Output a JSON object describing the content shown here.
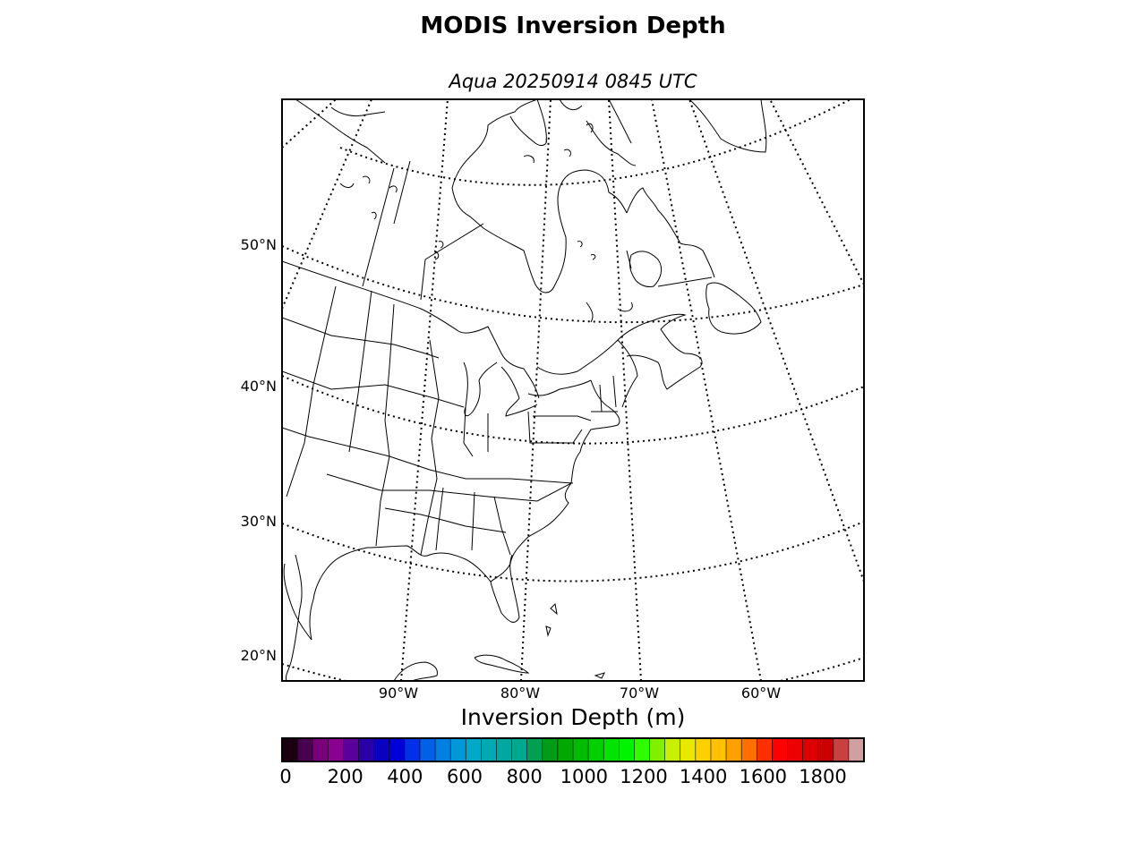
{
  "title": "MODIS Inversion Depth",
  "subtitle": "Aqua 20250914 0845 UTC",
  "map": {
    "projection": "conic",
    "lat_labels": [
      {
        "text": "50°N",
        "lat": 50
      },
      {
        "text": "40°N",
        "lat": 40
      },
      {
        "text": "30°N",
        "lat": 30
      },
      {
        "text": "20°N",
        "lat": 20
      }
    ],
    "lon_labels": [
      {
        "text": "90°W",
        "lon": -90
      },
      {
        "text": "80°W",
        "lon": -80
      },
      {
        "text": "70°W",
        "lon": -70
      },
      {
        "text": "60°W",
        "lon": -60
      }
    ],
    "line_color": "#000000"
  },
  "colorbar": {
    "label": "Inversion Depth (m)",
    "min": 0,
    "max": 1950,
    "step": 50,
    "tick_labels": [
      "0",
      "200",
      "400",
      "600",
      "800",
      "1000",
      "1200",
      "1400",
      "1600",
      "1800"
    ],
    "tick_values": [
      0,
      200,
      400,
      600,
      800,
      1000,
      1200,
      1400,
      1600,
      1800
    ],
    "colors": [
      "#1a0010",
      "#4a0050",
      "#7a007a",
      "#8a0090",
      "#5c009c",
      "#2a00a8",
      "#0a00c0",
      "#0000d8",
      "#0030e8",
      "#0060e8",
      "#0080e0",
      "#0098d8",
      "#00a8c8",
      "#00aab0",
      "#00a8a0",
      "#00a890",
      "#00a050",
      "#009c18",
      "#00a800",
      "#00bc00",
      "#00d000",
      "#00e400",
      "#00f400",
      "#30fc00",
      "#80f000",
      "#c8f000",
      "#e8e800",
      "#ffd000",
      "#ffc000",
      "#ffa000",
      "#ff7000",
      "#ff3000",
      "#ff0000",
      "#ee0000",
      "#dd0000",
      "#cc0000",
      "#c84040",
      "#d0a0a0"
    ]
  }
}
